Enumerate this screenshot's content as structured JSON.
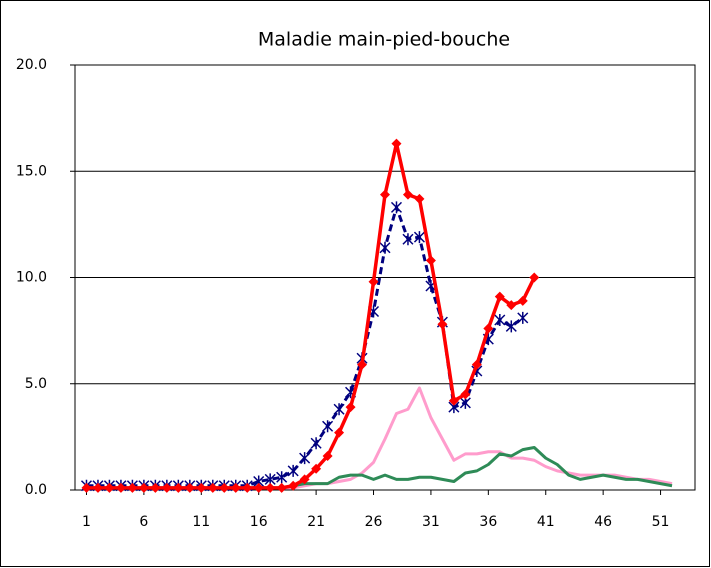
{
  "chart_data": {
    "type": "line",
    "title": "Maladie main-pied-bouche",
    "x": [
      1,
      2,
      3,
      4,
      5,
      6,
      7,
      8,
      9,
      10,
      11,
      12,
      13,
      14,
      15,
      16,
      17,
      18,
      19,
      20,
      21,
      22,
      23,
      24,
      25,
      26,
      27,
      28,
      29,
      30,
      31,
      32,
      33,
      34,
      35,
      36,
      37,
      38,
      39,
      40,
      41,
      42,
      43,
      44,
      45,
      46,
      47,
      48,
      49,
      50,
      51,
      52
    ],
    "xlim": [
      0,
      54
    ],
    "xticks": [
      1,
      6,
      11,
      16,
      21,
      26,
      31,
      36,
      41,
      46,
      51
    ],
    "ylim": [
      0,
      20
    ],
    "yticks": [
      {
        "value": 0,
        "label": "0.0"
      },
      {
        "value": 5,
        "label": "5.0"
      },
      {
        "value": 10,
        "label": "10.0"
      },
      {
        "value": 15,
        "label": "15.0"
      },
      {
        "value": 20,
        "label": "20.0"
      }
    ],
    "grid": true,
    "series": [
      {
        "color": "#ff9ccc",
        "width": 3,
        "values": [
          0.1,
          0.1,
          0.1,
          0.1,
          0.1,
          0.1,
          0.1,
          0.1,
          0.1,
          0.1,
          0.1,
          0.1,
          0.1,
          0.1,
          0.1,
          0.1,
          0.1,
          0.1,
          0.1,
          0.2,
          0.3,
          0.3,
          0.4,
          0.5,
          0.8,
          1.3,
          2.4,
          3.6,
          3.8,
          4.8,
          3.4,
          2.4,
          1.4,
          1.7,
          1.7,
          1.8,
          1.8,
          1.5,
          1.5,
          1.4,
          1.1,
          0.9,
          0.8,
          0.7,
          0.7,
          0.7,
          0.7,
          0.6,
          0.5,
          0.5,
          0.4,
          0.3
        ]
      },
      {
        "color": "#2e8b57",
        "width": 3,
        "values": [
          0.1,
          0.1,
          0.1,
          0.1,
          0.1,
          0.1,
          0.1,
          0.1,
          0.1,
          0.1,
          0.1,
          0.1,
          0.1,
          0.1,
          0.1,
          0.1,
          0.1,
          0.1,
          0.2,
          0.3,
          0.3,
          0.3,
          0.6,
          0.7,
          0.7,
          0.5,
          0.7,
          0.5,
          0.5,
          0.6,
          0.6,
          0.5,
          0.4,
          0.8,
          0.9,
          1.2,
          1.7,
          1.6,
          1.9,
          2.0,
          1.5,
          1.2,
          0.7,
          0.5,
          0.6,
          0.7,
          0.6,
          0.5,
          0.5,
          0.4,
          0.3,
          0.2
        ]
      },
      {
        "color": "#00007f",
        "width": 3,
        "dash": true,
        "marker": "star",
        "values": [
          0.2,
          0.2,
          0.2,
          0.2,
          0.2,
          0.2,
          0.2,
          0.2,
          0.2,
          0.2,
          0.2,
          0.2,
          0.2,
          0.2,
          0.2,
          0.4,
          0.5,
          0.6,
          0.9,
          1.5,
          2.2,
          3.0,
          3.8,
          4.6,
          6.2,
          8.4,
          11.4,
          13.3,
          11.8,
          11.9,
          9.6,
          7.9,
          3.9,
          4.1,
          5.6,
          7.1,
          8.0,
          7.7,
          8.1,
          null,
          null,
          null,
          null,
          null,
          null,
          null,
          null,
          null,
          null,
          null,
          null,
          null
        ]
      },
      {
        "color": "#ff0000",
        "width": 3.5,
        "marker": "diamond",
        "values": [
          0.1,
          0.1,
          0.1,
          0.1,
          0.1,
          0.1,
          0.1,
          0.1,
          0.1,
          0.1,
          0.1,
          0.1,
          0.1,
          0.1,
          0.1,
          0.1,
          0.1,
          0.1,
          0.2,
          0.5,
          1.0,
          1.6,
          2.7,
          3.9,
          5.9,
          9.8,
          13.9,
          16.3,
          13.9,
          13.7,
          10.8,
          7.8,
          4.2,
          4.5,
          5.9,
          7.6,
          9.1,
          8.7,
          8.9,
          10.0,
          null,
          null,
          null,
          null,
          null,
          null,
          null,
          null,
          null,
          null,
          null,
          null
        ]
      }
    ]
  }
}
